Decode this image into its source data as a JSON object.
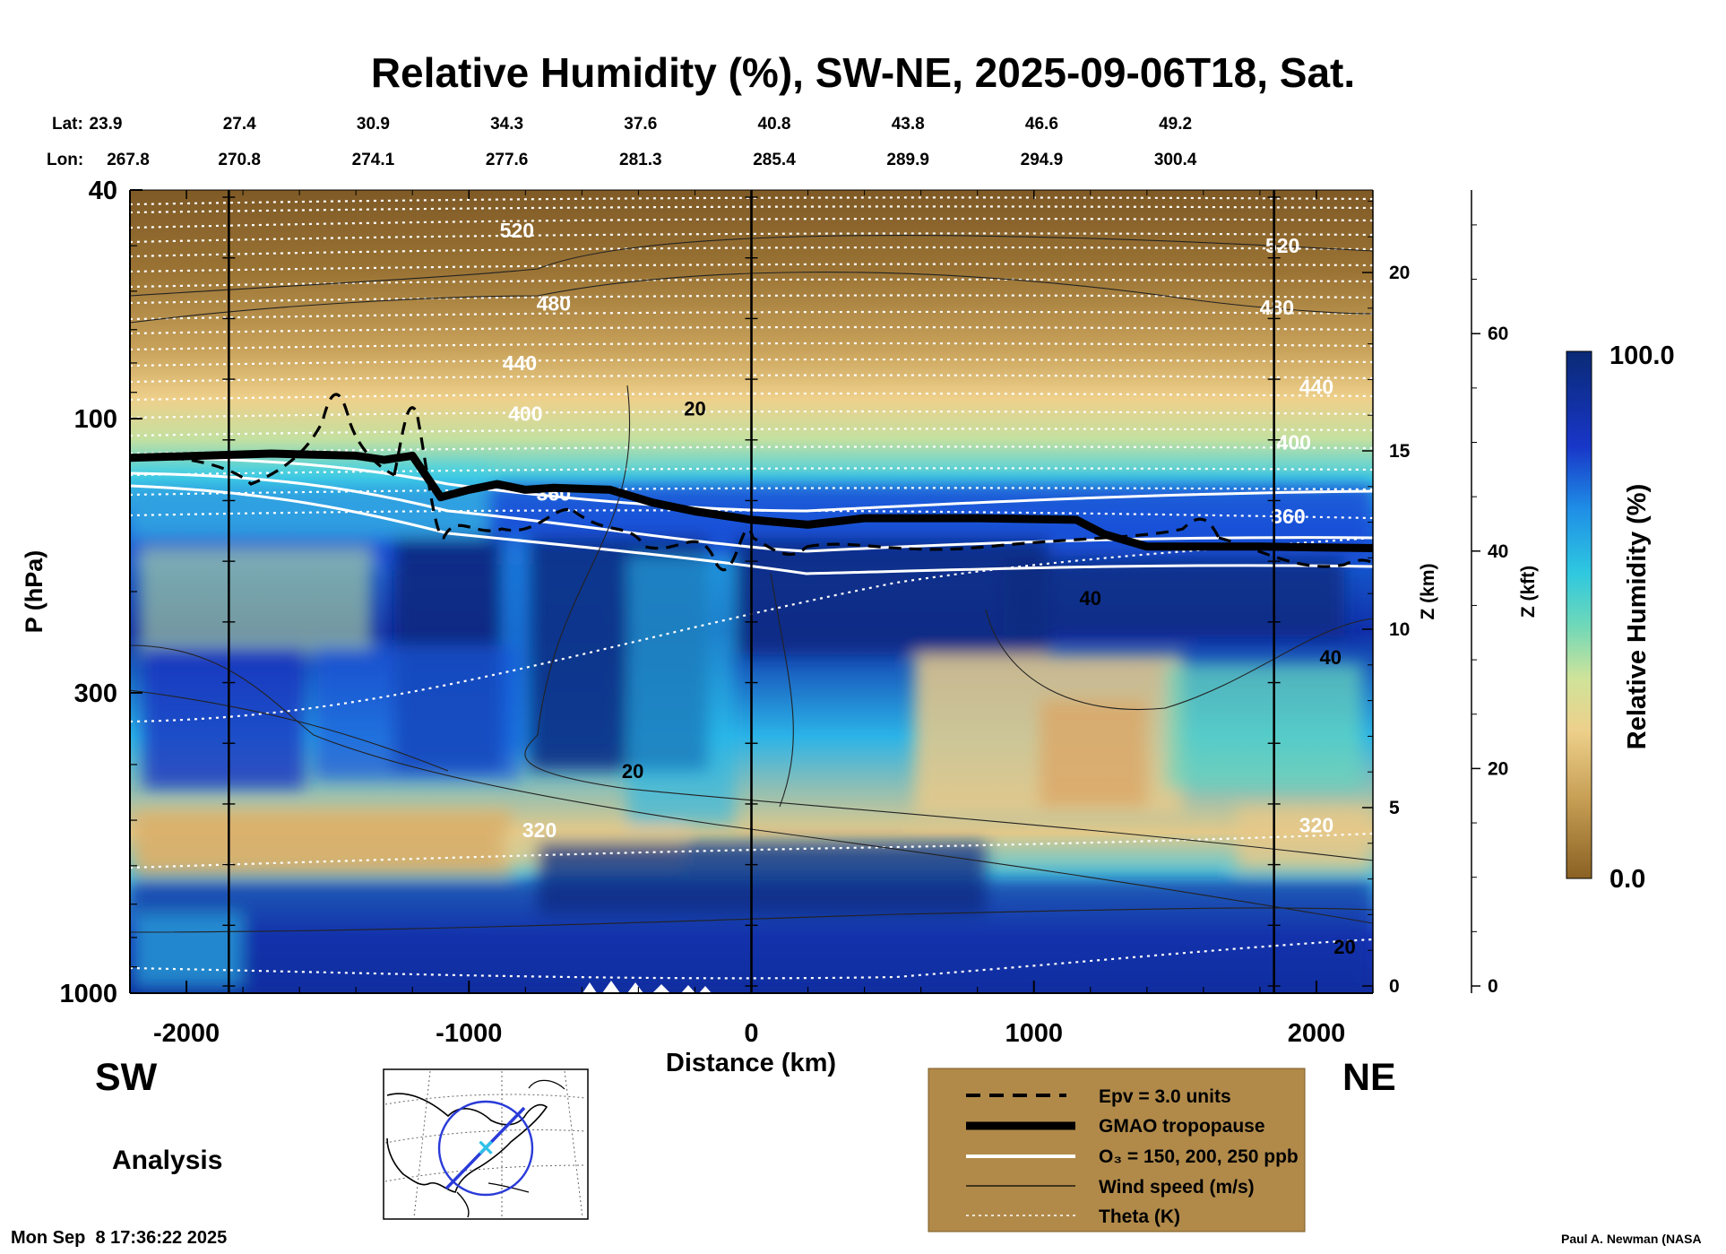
{
  "title": "Relative Humidity (%), SW-NE, 2025-09-06T18, Sat.",
  "lat_label": "Lat:",
  "lon_label": "Lon:",
  "lat_values": [
    "23.9",
    "27.4",
    "30.9",
    "34.3",
    "37.6",
    "40.8",
    "43.8",
    "46.6",
    "49.2"
  ],
  "lon_values": [
    "267.8",
    "270.8",
    "274.1",
    "277.6",
    "281.3",
    "285.4",
    "289.9",
    "294.9",
    "300.4"
  ],
  "side_sw": "SW",
  "side_ne": "NE",
  "analysis_label": "Analysis",
  "timestamp": "Mon Sep  8 17:36:22 2025",
  "credit": "Paul A. Newman (NASA",
  "legend": {
    "items": [
      "Epv = 3.0 units",
      "GMAO tropopause",
      "O₃ = 150, 200, 250 ppb",
      "Wind speed (m/s)",
      "Theta (K)"
    ]
  },
  "colorbar": {
    "max_label": "100.0",
    "min_label": "0.0",
    "title": "Relative Humidity (%)"
  },
  "chart_data": {
    "type": "heatmap",
    "title": "Relative Humidity (%), SW-NE, 2025-09-06T18, Sat.",
    "xlabel": "Distance (km)",
    "ylabel": "P (hPa)",
    "y2label": "Z (km)",
    "y3label": "Z (kft)",
    "colorbar_label": "Relative Humidity (%)",
    "xlim": [
      -2200,
      2200
    ],
    "ylim_hpa": [
      1000,
      40
    ],
    "x_ticks": [
      -2000,
      -1000,
      0,
      1000,
      2000
    ],
    "x_tick_labels": [
      "-2000",
      "-1000",
      "0",
      "1000",
      "2000"
    ],
    "y_ticks": [
      40,
      100,
      300,
      1000
    ],
    "y_tick_labels": [
      "40",
      "100",
      "300",
      "1000"
    ],
    "z_km_ticks": [
      0,
      5,
      10,
      15,
      20
    ],
    "z_km_labels": [
      "0",
      "5",
      "10",
      "15",
      "20"
    ],
    "z_kft_ticks": [
      0,
      20,
      40,
      60
    ],
    "z_kft_labels": [
      "0",
      "20",
      "40",
      "60"
    ],
    "vertical_marker_lines_km": [
      -1850,
      0,
      1850
    ],
    "theta_contour_labels": [
      {
        "text": "520",
        "x": -830,
        "p": 47
      },
      {
        "text": "480",
        "x": -700,
        "p": 63
      },
      {
        "text": "440",
        "x": -820,
        "p": 80
      },
      {
        "text": "400",
        "x": -800,
        "p": 98
      },
      {
        "text": "360",
        "x": -700,
        "p": 135
      },
      {
        "text": "320",
        "x": -750,
        "p": 520
      },
      {
        "text": "520",
        "x": 1880,
        "p": 50
      },
      {
        "text": "480",
        "x": 1860,
        "p": 64
      },
      {
        "text": "440",
        "x": 2000,
        "p": 88
      },
      {
        "text": "400",
        "x": 1920,
        "p": 110
      },
      {
        "text": "360",
        "x": 1900,
        "p": 148
      },
      {
        "text": "320",
        "x": 2000,
        "p": 510
      }
    ],
    "wind_contour_labels": [
      {
        "text": "20",
        "x": -200,
        "p": 96
      },
      {
        "text": "20",
        "x": -420,
        "p": 410
      },
      {
        "text": "40",
        "x": 1200,
        "p": 205
      },
      {
        "text": "40",
        "x": 2050,
        "p": 260
      },
      {
        "text": "20",
        "x": 2100,
        "p": 830
      }
    ],
    "gmao_tropopause": {
      "x": [
        -2200,
        -1700,
        -1400,
        -1300,
        -1200,
        -1100,
        -1000,
        -900,
        -800,
        -700,
        -500,
        -350,
        -200,
        0,
        200,
        400,
        800,
        1150,
        1250,
        1400,
        1800,
        2200
      ],
      "p": [
        117,
        115,
        116,
        118,
        116,
        137,
        133,
        130,
        133,
        132,
        133,
        140,
        145,
        150,
        153,
        149,
        149,
        150,
        159,
        167,
        167,
        168
      ]
    },
    "colorbar_range": [
      0.0,
      100.0
    ]
  }
}
